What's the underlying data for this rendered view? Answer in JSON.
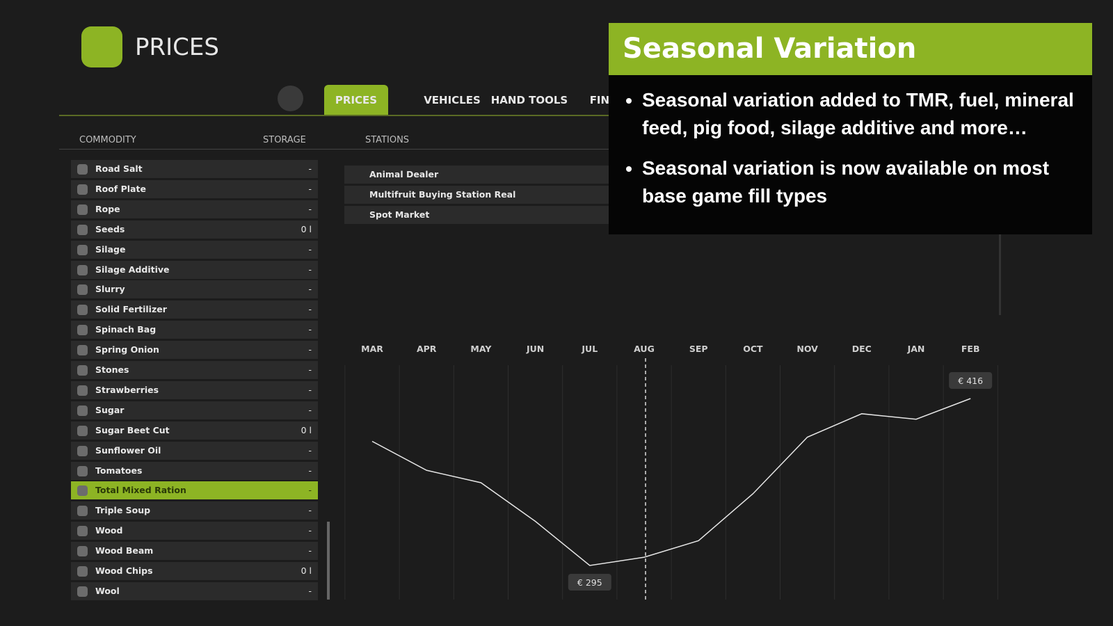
{
  "header": {
    "title": "PRICES"
  },
  "tabs": {
    "items": [
      "PRICES",
      "VEHICLES",
      "HAND TOOLS",
      "FINANCES"
    ],
    "active": "PRICES"
  },
  "columns": [
    "COMMODITY",
    "STORAGE",
    "STATIONS"
  ],
  "commodities": [
    {
      "name": "Road Salt",
      "storage": "-"
    },
    {
      "name": "Roof Plate",
      "storage": "-"
    },
    {
      "name": "Rope",
      "storage": "-"
    },
    {
      "name": "Seeds",
      "storage": "0 l"
    },
    {
      "name": "Silage",
      "storage": "-"
    },
    {
      "name": "Silage Additive",
      "storage": "-"
    },
    {
      "name": "Slurry",
      "storage": "-"
    },
    {
      "name": "Solid Fertilizer",
      "storage": "-"
    },
    {
      "name": "Spinach Bag",
      "storage": "-"
    },
    {
      "name": "Spring Onion",
      "storage": "-"
    },
    {
      "name": "Stones",
      "storage": "-"
    },
    {
      "name": "Strawberries",
      "storage": "-"
    },
    {
      "name": "Sugar",
      "storage": "-"
    },
    {
      "name": "Sugar Beet Cut",
      "storage": "0 l"
    },
    {
      "name": "Sunflower Oil",
      "storage": "-"
    },
    {
      "name": "Tomatoes",
      "storage": "-"
    },
    {
      "name": "Total Mixed Ration",
      "storage": "-",
      "selected": true
    },
    {
      "name": "Triple Soup",
      "storage": "-"
    },
    {
      "name": "Wood",
      "storage": "-"
    },
    {
      "name": "Wood Beam",
      "storage": "-"
    },
    {
      "name": "Wood Chips",
      "storage": "0 l"
    },
    {
      "name": "Wool",
      "storage": "-"
    }
  ],
  "stations": [
    "Animal Dealer",
    "Multifruit Buying Station Real",
    "Spot Market"
  ],
  "price_chart": {
    "type": "line",
    "categories": [
      "MAR",
      "APR",
      "MAY",
      "JUN",
      "JUL",
      "AUG",
      "SEP",
      "OCT",
      "NOV",
      "DEC",
      "JAN",
      "FEB"
    ],
    "values": [
      385,
      364,
      355,
      327,
      295,
      301,
      313,
      347,
      388,
      405,
      401,
      416
    ],
    "value_labels": [
      null,
      null,
      null,
      null,
      "€ 295",
      null,
      null,
      null,
      null,
      null,
      null,
      "€ 416"
    ],
    "color": "#e6e6e6",
    "marker_category": "AUG"
  },
  "overlay": {
    "title": "Seasonal Variation",
    "bullets": [
      "Seasonal variation added to TMR, fuel, mineral feed, pig food, silage additive and more…",
      "Seasonal variation is now available on most base game fill types"
    ]
  }
}
